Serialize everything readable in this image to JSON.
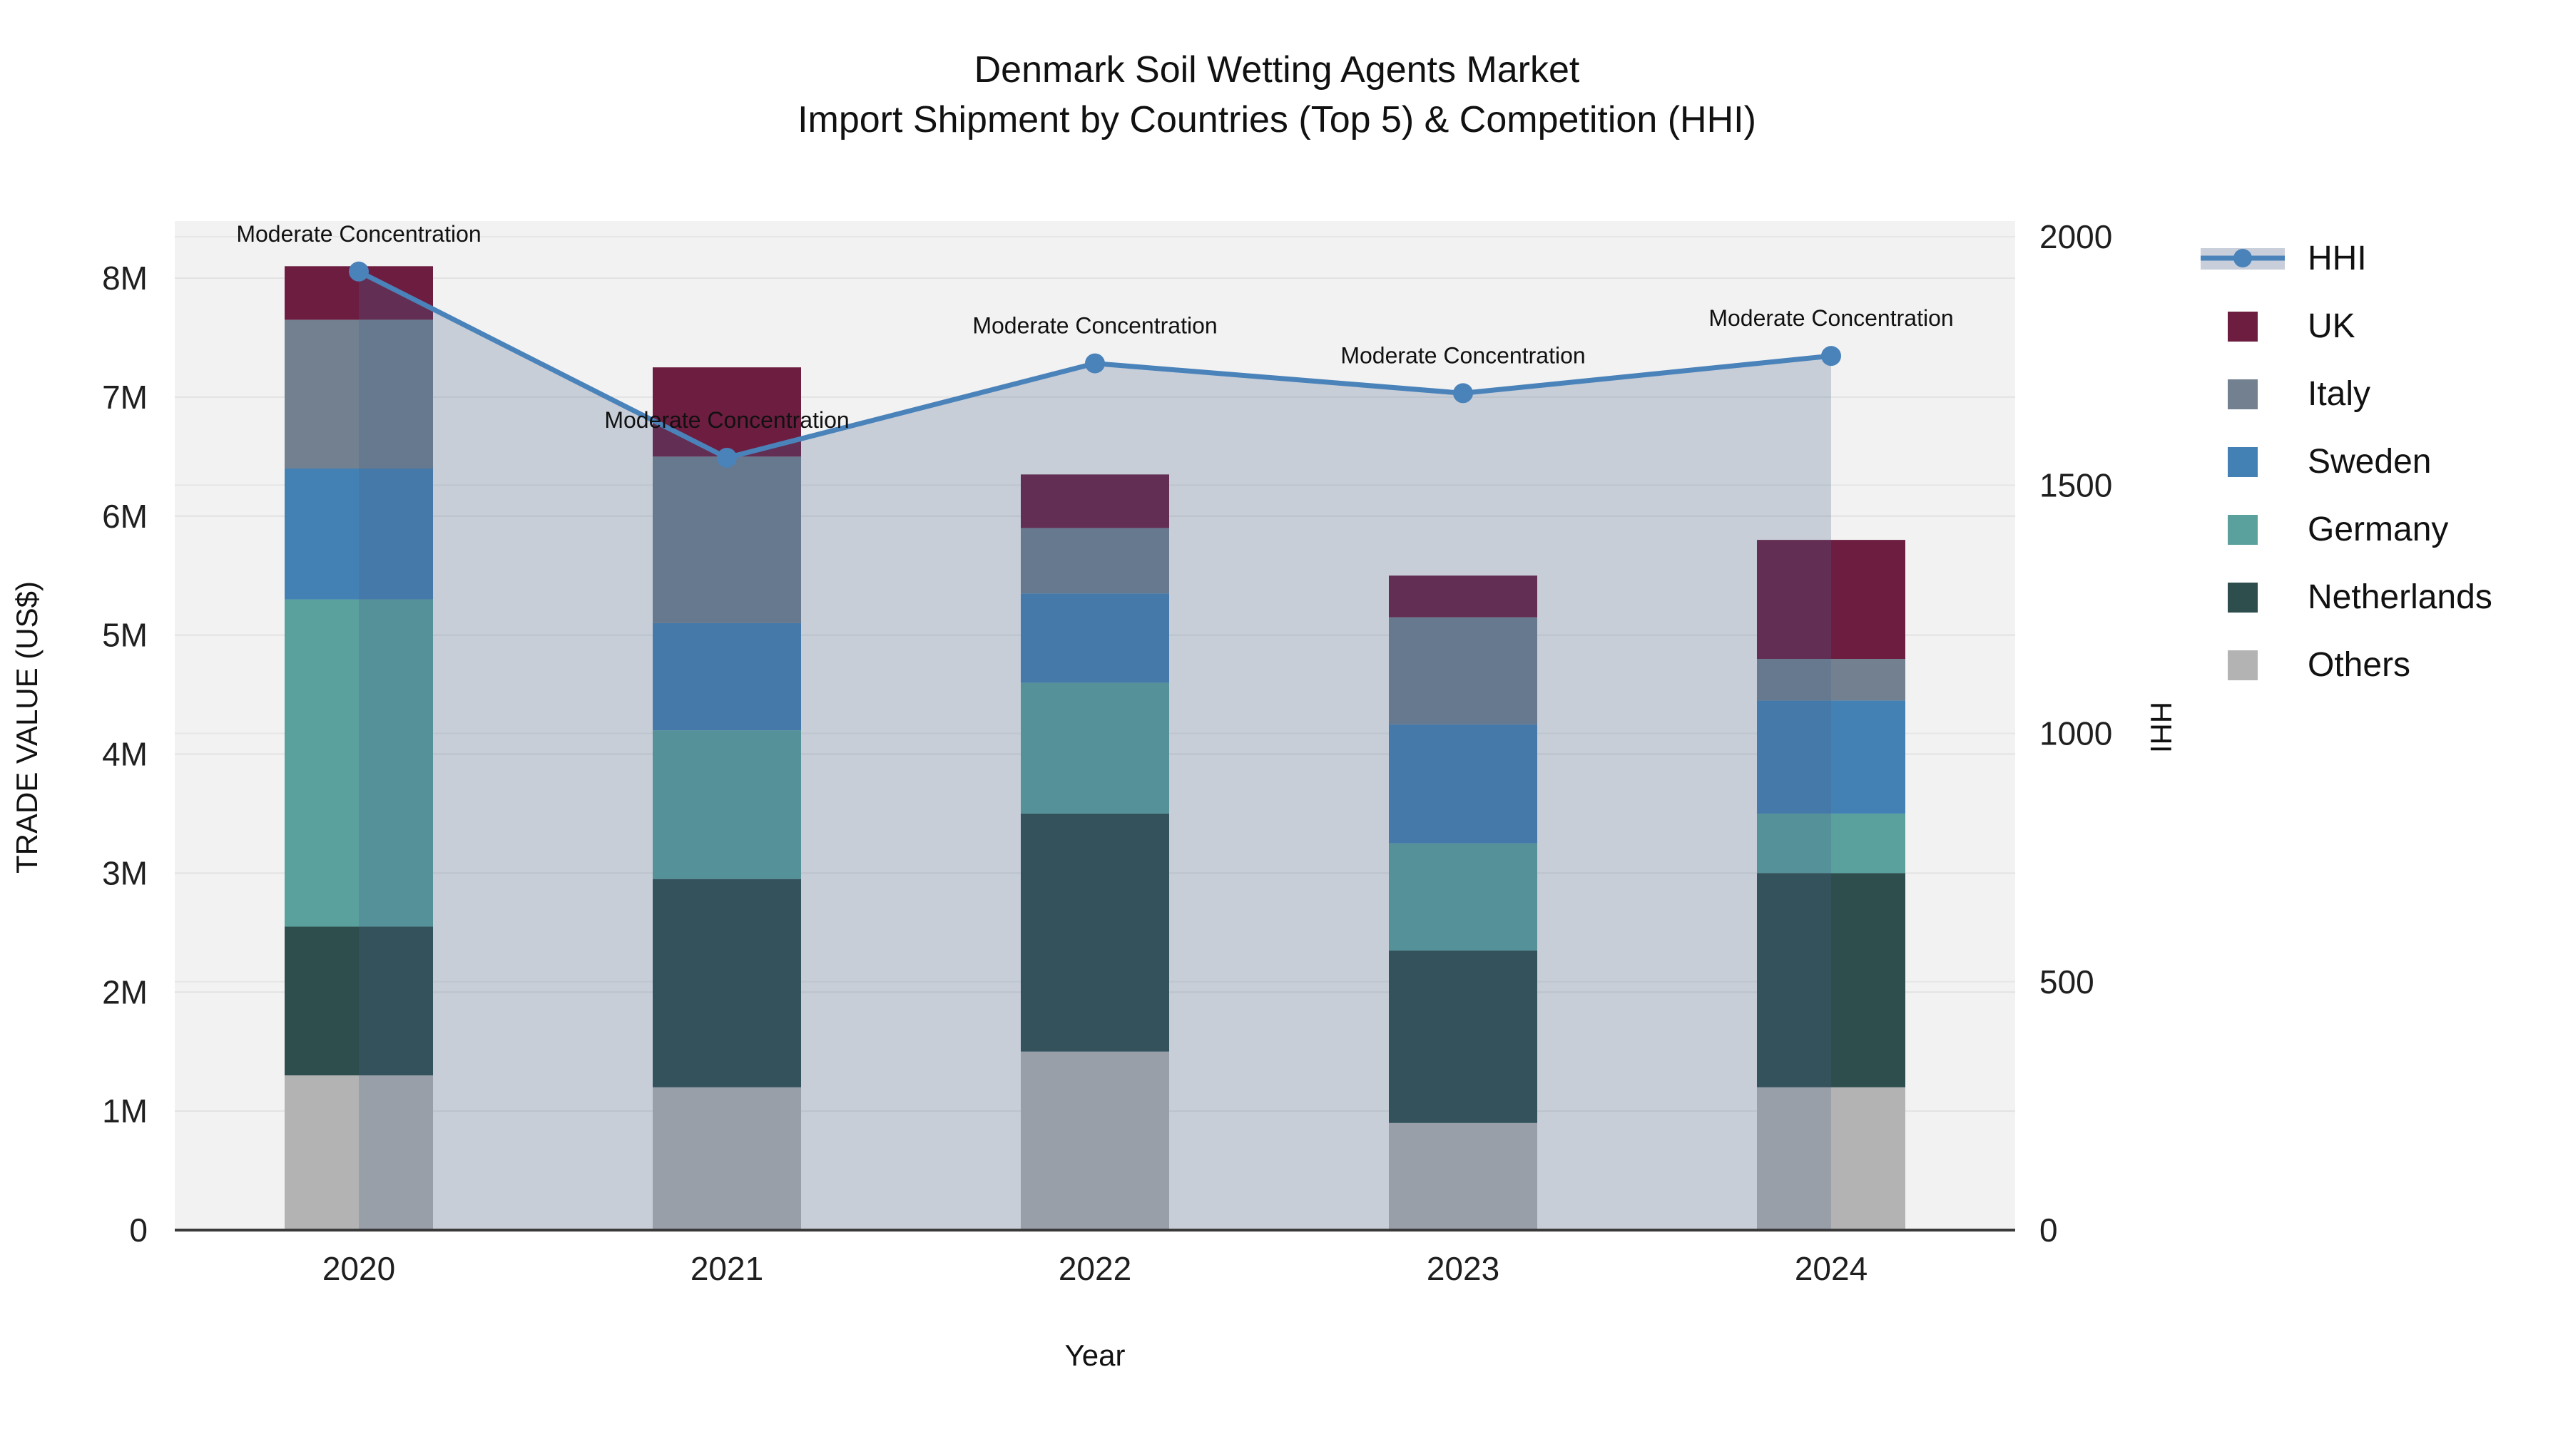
{
  "title": {
    "line1": "Denmark Soil Wetting Agents Market",
    "line2": "Import Shipment by Countries (Top 5) & Competition (HHI)"
  },
  "axes": {
    "left": {
      "title": "TRADE VALUE (US$)",
      "tick_labels": [
        "0",
        "1M",
        "2M",
        "3M",
        "4M",
        "5M",
        "6M",
        "7M",
        "8M"
      ],
      "tick_values": [
        0,
        1,
        2,
        3,
        4,
        5,
        6,
        7,
        8
      ],
      "range_millions": [
        0,
        8.48
      ]
    },
    "right": {
      "title": "HHI",
      "tick_labels": [
        "0",
        "500",
        "1000",
        "1500",
        "2000"
      ],
      "tick_values": [
        0,
        500,
        1000,
        1500,
        2000
      ],
      "range": [
        0,
        2035
      ]
    },
    "x": {
      "title": "Year",
      "categories": [
        "2020",
        "2021",
        "2022",
        "2023",
        "2024"
      ]
    }
  },
  "legend": {
    "items": [
      {
        "label": "HHI",
        "type": "line",
        "color": "#4a82ba",
        "band_color": "#c9cfda"
      },
      {
        "label": "UK",
        "type": "swatch",
        "color": "#6d1d40"
      },
      {
        "label": "Italy",
        "type": "swatch",
        "color": "#72808f"
      },
      {
        "label": "Sweden",
        "type": "swatch",
        "color": "#4381b5"
      },
      {
        "label": "Germany",
        "type": "swatch",
        "color": "#5aa19e"
      },
      {
        "label": "Netherlands",
        "type": "swatch",
        "color": "#2e4d4d"
      },
      {
        "label": "Others",
        "type": "swatch",
        "color": "#b3b3b3"
      }
    ]
  },
  "chart_data": {
    "type": "bar",
    "subtype": "stacked bars (left axis, trade value) + HHI line with shaded area (right axis)",
    "categories": [
      "2020",
      "2021",
      "2022",
      "2023",
      "2024"
    ],
    "bar_unit": "million US$",
    "stack_order_bottom_to_top": [
      "Others",
      "Netherlands",
      "Germany",
      "Sweden",
      "Italy",
      "UK"
    ],
    "series": [
      {
        "name": "Others",
        "color": "#b3b3b3",
        "values": [
          1.3,
          1.2,
          1.5,
          0.9,
          1.2
        ]
      },
      {
        "name": "Netherlands",
        "color": "#2e4d4d",
        "values": [
          1.25,
          1.75,
          2.0,
          1.45,
          1.8
        ]
      },
      {
        "name": "Germany",
        "color": "#5aa19e",
        "values": [
          2.75,
          1.25,
          1.1,
          0.9,
          0.5
        ]
      },
      {
        "name": "Sweden",
        "color": "#4381b5",
        "values": [
          1.1,
          0.9,
          0.75,
          1.0,
          0.95
        ]
      },
      {
        "name": "Italy",
        "color": "#72808f",
        "values": [
          1.25,
          1.4,
          0.55,
          0.9,
          0.35
        ]
      },
      {
        "name": "UK",
        "color": "#6d1d40",
        "values": [
          0.45,
          0.75,
          0.45,
          0.35,
          1.0
        ]
      }
    ],
    "bar_totals_millions": [
      8.1,
      7.25,
      6.35,
      5.5,
      5.8
    ],
    "line_series": {
      "name": "HHI",
      "axis": "right",
      "color": "#4a82ba",
      "area_fill_color": "#46648c",
      "area_fill_opacity": 0.25,
      "values": [
        1930,
        1555,
        1745,
        1685,
        1760
      ],
      "point_annotations": [
        "Moderate Concentration",
        "Moderate Concentration",
        "Moderate Concentration",
        "Moderate Concentration",
        "Moderate Concentration"
      ]
    },
    "xlabel": "Year",
    "ylabel_left": "TRADE VALUE (US$)",
    "ylabel_right": "HHI",
    "ylim_left_millions": [
      0,
      8.48
    ],
    "ylim_right": [
      0,
      2035
    ],
    "grid": true,
    "plot_background": "#f2f2f2",
    "legend_position": "right"
  }
}
